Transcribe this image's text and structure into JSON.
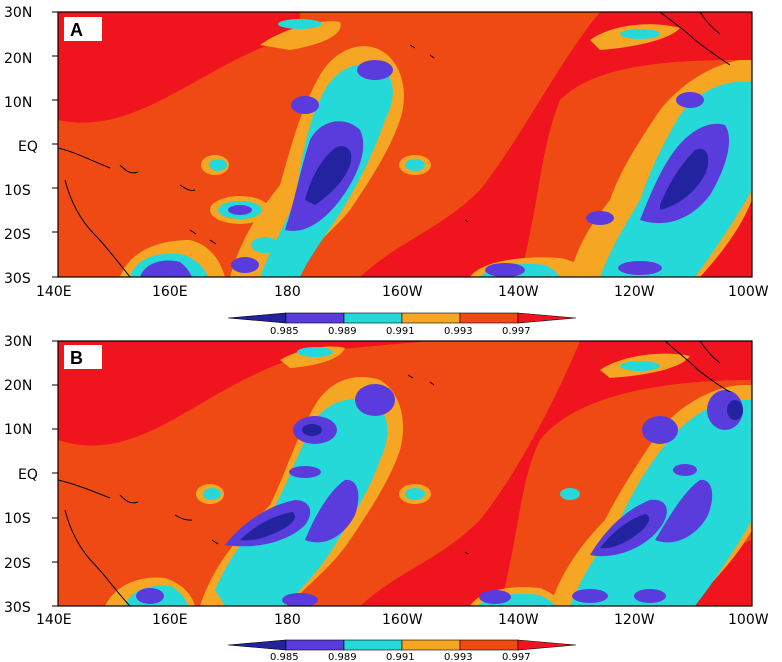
{
  "panels": [
    {
      "label": "A",
      "y_ticks": [
        "30N",
        "20N",
        "10N",
        "EQ",
        "10S",
        "20S",
        "30S"
      ],
      "x_ticks": [
        "140E",
        "160E",
        "180",
        "160W",
        "140W",
        "120W",
        "100W"
      ]
    },
    {
      "label": "B",
      "y_ticks": [
        "30N",
        "20N",
        "10N",
        "EQ",
        "10S",
        "20S",
        "30S"
      ],
      "x_ticks": [
        "140E",
        "160E",
        "180",
        "160W",
        "140W",
        "120W",
        "100W"
      ]
    }
  ],
  "colorbar": {
    "levels": [
      "0.985",
      "0.989",
      "0.991",
      "0.993",
      "0.997"
    ],
    "colors": {
      "dark_blue": "#2323a0",
      "blue_violet": "#5a3cdc",
      "cyan": "#25d9d9",
      "orange": "#f5a623",
      "red_orange": "#f04a14",
      "red": "#f0141e"
    }
  },
  "map_colors": {
    "background_red": "#f0141e",
    "red_orange": "#f04a14",
    "orange": "#f5a623",
    "cyan": "#25d9d9",
    "violet": "#5a3cdc",
    "dark_blue": "#2323a0",
    "coastline": "#000000"
  }
}
